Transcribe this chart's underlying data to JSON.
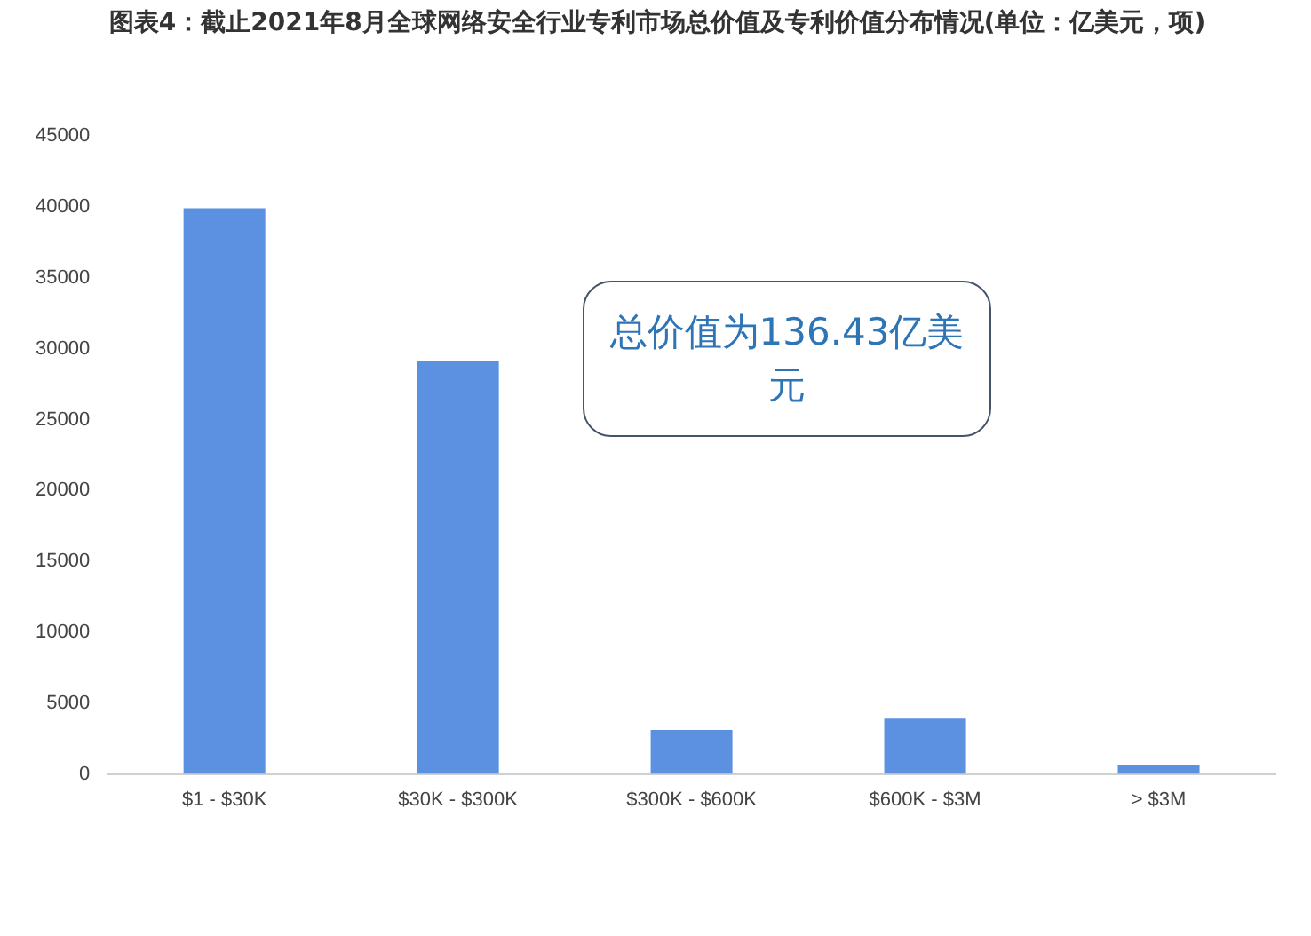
{
  "chart_data": {
    "type": "bar",
    "title": "图表4：截止2021年8月全球网络安全行业专利市场总价值及专利价值分布情况(单位：亿美元，项)",
    "categories": [
      "$1 - $30K",
      "$30K - $300K",
      "$300K - $600K",
      "$600K - $3M",
      "> $3M"
    ],
    "values": [
      39900,
      29100,
      3100,
      3900,
      600
    ],
    "color": "#5b91e0",
    "ylim": [
      0,
      45000
    ],
    "yticks": [
      0,
      5000,
      10000,
      15000,
      20000,
      25000,
      30000,
      35000,
      40000,
      45000
    ],
    "grid": false,
    "annotations": [
      "总价值为136.43亿美元"
    ]
  }
}
